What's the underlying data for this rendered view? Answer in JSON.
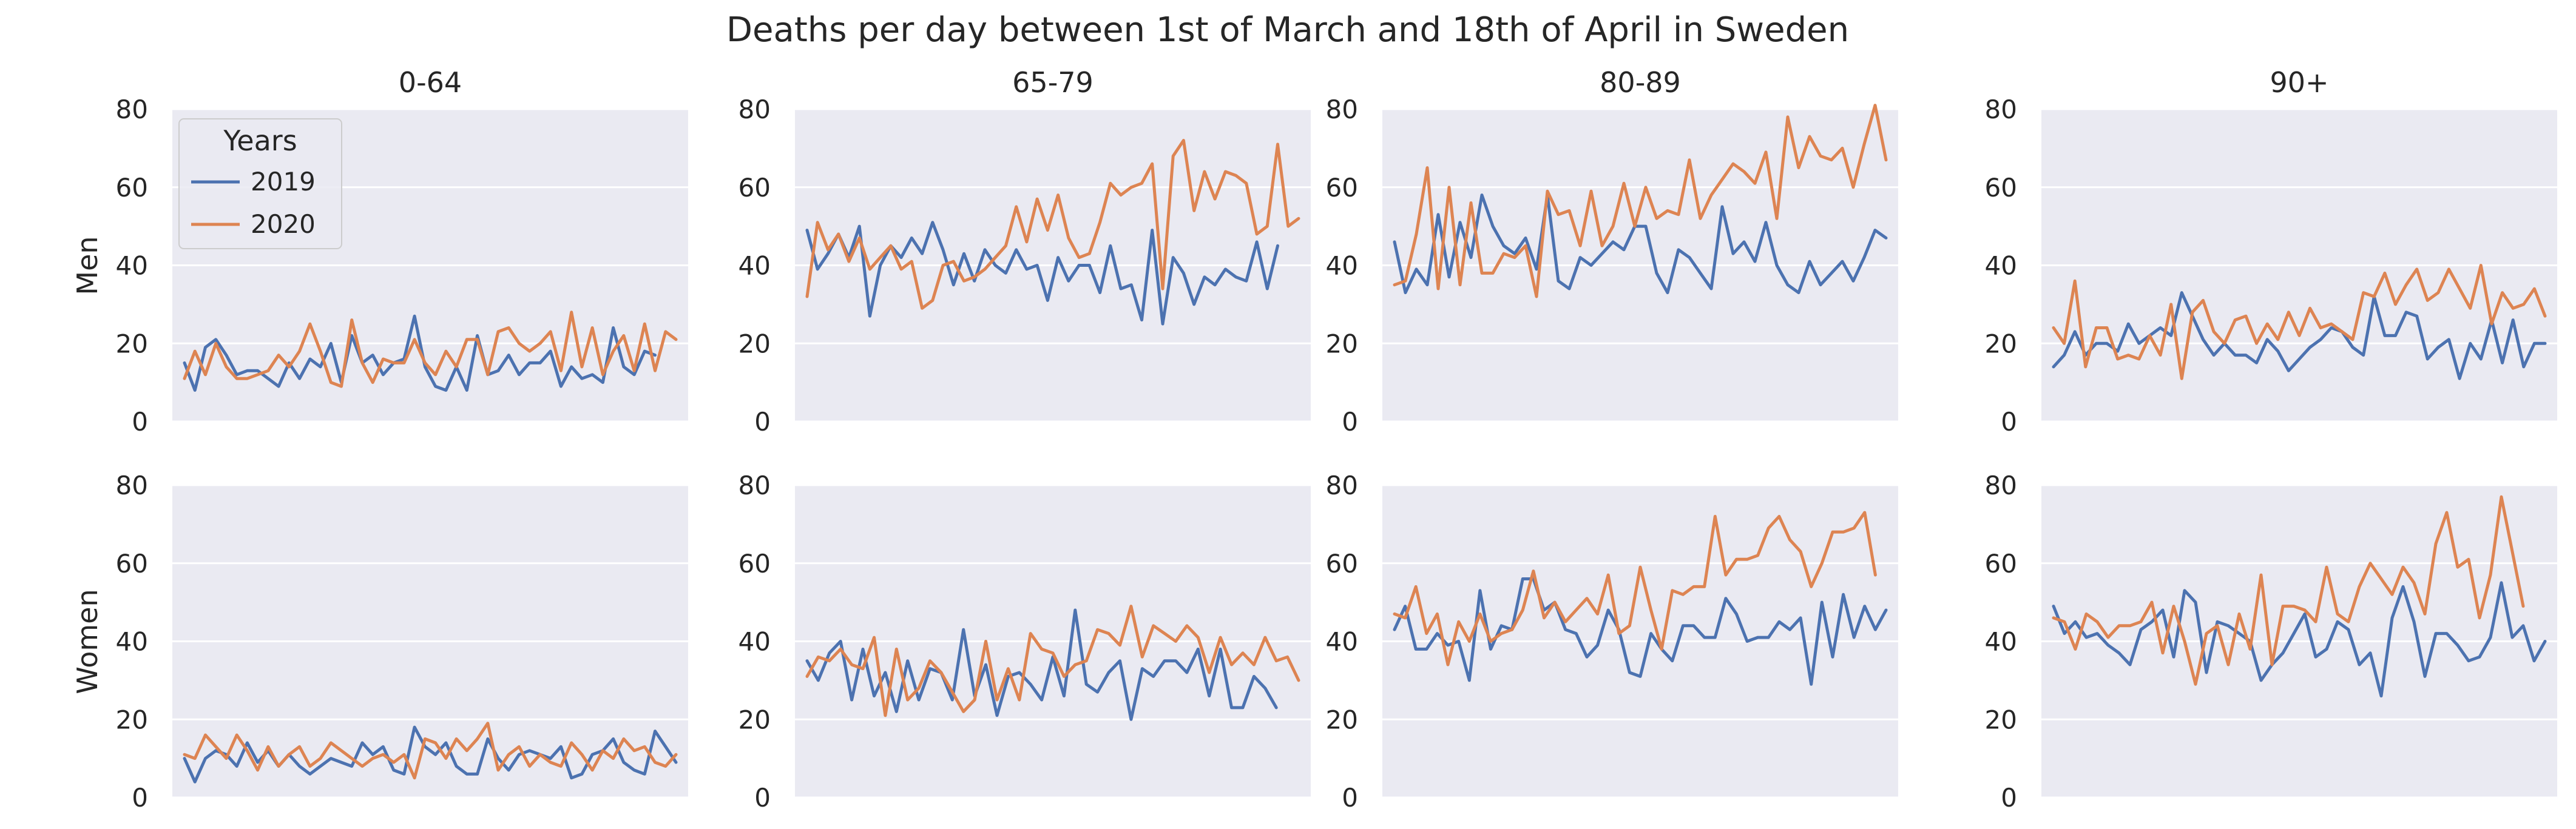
{
  "chart_data": {
    "type": "line",
    "title": "Deaths per day between 1st of March and 18th of April in Sweden",
    "legend": {
      "title": "Years",
      "entries": [
        "2019",
        "2020"
      ],
      "location": "upper-left of first panel"
    },
    "series_colors": {
      "2019": "#4c72b0",
      "2020": "#dd8452"
    },
    "grid": true,
    "ylim": [
      0,
      80
    ],
    "yticks": [
      0,
      20,
      40,
      60,
      80
    ],
    "x": "day index 1-49 (1 Mar - 18 Apr), no x tick labels",
    "row_labels": [
      "Men",
      "Women"
    ],
    "column_labels": [
      "0-64",
      "65-79",
      "80-89",
      "90+"
    ],
    "panels": [
      {
        "row": "Men",
        "column": "0-64",
        "series": [
          {
            "name": "2019",
            "values": [
              15,
              8,
              19,
              21,
              17,
              12,
              13,
              13,
              11,
              9,
              15,
              11,
              16,
              14,
              20,
              10,
              22,
              15,
              17,
              12,
              15,
              16,
              27,
              14,
              9,
              8,
              14,
              8,
              22,
              12,
              13,
              17,
              12,
              15,
              15,
              18,
              9,
              14,
              11,
              12,
              10,
              24,
              14,
              12,
              18,
              17
            ]
          },
          {
            "name": "2020",
            "values": [
              11,
              18,
              12,
              20,
              14,
              11,
              11,
              12,
              13,
              17,
              14,
              18,
              25,
              18,
              10,
              9,
              26,
              15,
              10,
              16,
              15,
              15,
              21,
              15,
              12,
              18,
              14,
              21,
              21,
              12,
              23,
              24,
              20,
              18,
              20,
              23,
              13,
              28,
              14,
              24,
              12,
              18,
              22,
              13,
              25,
              13,
              23,
              21
            ]
          }
        ]
      },
      {
        "row": "Men",
        "column": "65-79",
        "series": [
          {
            "name": "2019",
            "values": [
              49,
              39,
              43,
              48,
              42,
              50,
              27,
              40,
              45,
              42,
              47,
              43,
              51,
              44,
              35,
              43,
              36,
              44,
              40,
              38,
              44,
              39,
              40,
              31,
              42,
              36,
              40,
              40,
              33,
              45,
              34,
              35,
              26,
              49,
              25,
              42,
              38,
              30,
              37,
              35,
              39,
              37,
              36,
              46,
              34,
              45
            ]
          },
          {
            "name": "2020",
            "values": [
              32,
              51,
              44,
              48,
              41,
              47,
              39,
              42,
              45,
              39,
              41,
              29,
              31,
              40,
              41,
              36,
              37,
              39,
              42,
              45,
              55,
              46,
              57,
              49,
              58,
              47,
              42,
              43,
              51,
              61,
              58,
              60,
              61,
              66,
              34,
              68,
              72,
              54,
              64,
              57,
              64,
              63,
              61,
              48,
              50,
              71,
              50,
              52
            ]
          }
        ]
      },
      {
        "row": "Men",
        "column": "80-89",
        "series": [
          {
            "name": "2019",
            "values": [
              46,
              33,
              39,
              35,
              53,
              37,
              51,
              42,
              58,
              50,
              45,
              43,
              47,
              39,
              58,
              36,
              34,
              42,
              40,
              43,
              46,
              44,
              50,
              50,
              38,
              33,
              44,
              42,
              38,
              34,
              55,
              43,
              46,
              41,
              51,
              40,
              35,
              33,
              41,
              35,
              38,
              41,
              36,
              42,
              49,
              47
            ]
          },
          {
            "name": "2020",
            "values": [
              35,
              36,
              48,
              65,
              34,
              60,
              35,
              56,
              38,
              38,
              43,
              42,
              45,
              32,
              59,
              53,
              54,
              45,
              59,
              45,
              50,
              61,
              50,
              60,
              52,
              54,
              53,
              67,
              52,
              58,
              62,
              66,
              64,
              61,
              69,
              52,
              78,
              65,
              73,
              68,
              67,
              70,
              60,
              71,
              81,
              67
            ]
          }
        ]
      },
      {
        "row": "Men",
        "column": "90+",
        "series": [
          {
            "name": "2019",
            "values": [
              14,
              17,
              23,
              17,
              20,
              20,
              18,
              25,
              20,
              22,
              24,
              22,
              33,
              27,
              21,
              17,
              20,
              17,
              17,
              15,
              21,
              18,
              13,
              16,
              19,
              21,
              24,
              23,
              19,
              17,
              32,
              22,
              22,
              28,
              27,
              16,
              19,
              21,
              11,
              20,
              16,
              26,
              15,
              26,
              14,
              20,
              20
            ]
          },
          {
            "name": "2020",
            "values": [
              24,
              20,
              36,
              14,
              24,
              24,
              16,
              17,
              16,
              22,
              17,
              30,
              11,
              28,
              31,
              23,
              20,
              26,
              27,
              20,
              25,
              21,
              28,
              22,
              29,
              24,
              25,
              23,
              21,
              33,
              32,
              38,
              30,
              35,
              39,
              31,
              33,
              39,
              34,
              29,
              40,
              25,
              33,
              29,
              30,
              34,
              27
            ]
          }
        ]
      },
      {
        "row": "Women",
        "column": "0-64",
        "series": [
          {
            "name": "2019",
            "values": [
              10,
              4,
              10,
              12,
              11,
              8,
              14,
              9,
              12,
              8,
              11,
              8,
              6,
              8,
              10,
              9,
              8,
              14,
              11,
              13,
              7,
              6,
              18,
              13,
              11,
              14,
              8,
              6,
              6,
              15,
              10,
              7,
              11,
              12,
              11,
              10,
              13,
              5,
              6,
              11,
              12,
              15,
              9,
              7,
              6,
              17,
              13,
              9
            ]
          },
          {
            "name": "2020",
            "values": [
              11,
              10,
              16,
              13,
              10,
              16,
              12,
              7,
              13,
              8,
              11,
              13,
              8,
              10,
              14,
              12,
              10,
              8,
              10,
              11,
              9,
              11,
              5,
              15,
              14,
              10,
              15,
              12,
              15,
              19,
              7,
              11,
              13,
              8,
              11,
              9,
              8,
              14,
              11,
              7,
              12,
              10,
              15,
              12,
              13,
              9,
              8,
              11
            ]
          }
        ]
      },
      {
        "row": "Women",
        "column": "65-79",
        "series": [
          {
            "name": "2019",
            "values": [
              35,
              30,
              37,
              40,
              25,
              38,
              26,
              32,
              22,
              35,
              25,
              33,
              32,
              25,
              43,
              26,
              34,
              21,
              31,
              32,
              29,
              25,
              36,
              26,
              48,
              29,
              27,
              32,
              35,
              20,
              33,
              31,
              35,
              35,
              32,
              38,
              26,
              38,
              23,
              23,
              31,
              28,
              23
            ]
          },
          {
            "name": "2020",
            "values": [
              31,
              36,
              35,
              38,
              34,
              33,
              41,
              21,
              38,
              25,
              28,
              35,
              32,
              27,
              22,
              25,
              40,
              25,
              33,
              25,
              42,
              38,
              37,
              31,
              34,
              35,
              43,
              42,
              39,
              49,
              36,
              44,
              42,
              40,
              44,
              41,
              32,
              41,
              34,
              37,
              34,
              41,
              35,
              36,
              30
            ]
          }
        ]
      },
      {
        "row": "Women",
        "column": "80-89",
        "series": [
          {
            "name": "2019",
            "values": [
              43,
              49,
              38,
              38,
              42,
              39,
              40,
              30,
              53,
              38,
              44,
              43,
              56,
              56,
              48,
              50,
              43,
              42,
              36,
              39,
              48,
              43,
              32,
              31,
              42,
              38,
              35,
              44,
              44,
              41,
              41,
              51,
              47,
              40,
              41,
              41,
              45,
              43,
              46,
              29,
              50,
              36,
              52,
              41,
              49,
              43,
              48
            ]
          },
          {
            "name": "2020",
            "values": [
              47,
              46,
              54,
              42,
              47,
              34,
              45,
              40,
              47,
              40,
              42,
              43,
              48,
              58,
              46,
              50,
              45,
              48,
              51,
              47,
              57,
              42,
              44,
              59,
              48,
              38,
              53,
              52,
              54,
              54,
              72,
              57,
              61,
              61,
              62,
              69,
              72,
              66,
              63,
              54,
              60,
              68,
              68,
              69,
              73,
              57
            ]
          }
        ]
      },
      {
        "row": "Women",
        "column": "90+",
        "series": [
          {
            "name": "2019",
            "values": [
              49,
              42,
              45,
              41,
              42,
              39,
              37,
              34,
              43,
              45,
              48,
              36,
              53,
              50,
              32,
              45,
              44,
              42,
              40,
              30,
              34,
              37,
              42,
              47,
              36,
              38,
              45,
              43,
              34,
              37,
              26,
              46,
              54,
              45,
              31,
              42,
              42,
              39,
              35,
              36,
              41,
              55,
              41,
              44,
              35,
              40
            ]
          },
          {
            "name": "2020",
            "values": [
              46,
              45,
              38,
              47,
              45,
              41,
              44,
              44,
              45,
              50,
              37,
              49,
              40,
              29,
              42,
              44,
              34,
              47,
              38,
              57,
              34,
              49,
              49,
              48,
              45,
              59,
              47,
              45,
              54,
              60,
              56,
              52,
              59,
              55,
              47,
              65,
              73,
              59,
              61,
              46,
              57,
              77,
              63,
              49
            ]
          }
        ]
      }
    ]
  }
}
